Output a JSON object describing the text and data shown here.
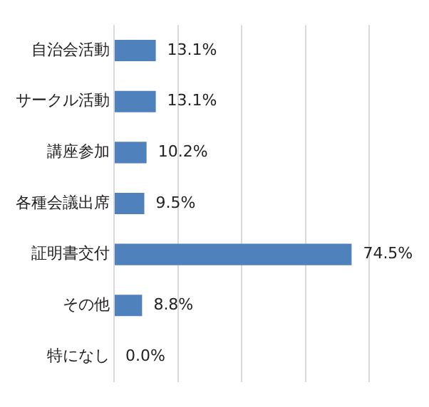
{
  "chart_data": {
    "type": "bar",
    "orientation": "horizontal",
    "categories": [
      "自治会活動",
      "サークル活動",
      "講座参加",
      "各種会議出席",
      "証明書交付",
      "その他",
      "特になし"
    ],
    "values": [
      13.1,
      13.1,
      10.2,
      9.5,
      74.5,
      8.8,
      0.0
    ],
    "value_labels": [
      "13.1%",
      "13.1%",
      "10.2%",
      "9.5%",
      "74.5%",
      "8.8%",
      "0.0%"
    ],
    "color": "#4f81bd",
    "xlim": [
      0,
      80
    ],
    "xticks": [
      {
        "value": 0,
        "label": null
      },
      {
        "value": 20,
        "label": null
      },
      {
        "value": 40,
        "label": null
      },
      {
        "value": 60,
        "label": null
      },
      {
        "value": 80,
        "label": null
      }
    ],
    "grid": "x",
    "tick_labels": "y",
    "legend": false
  }
}
